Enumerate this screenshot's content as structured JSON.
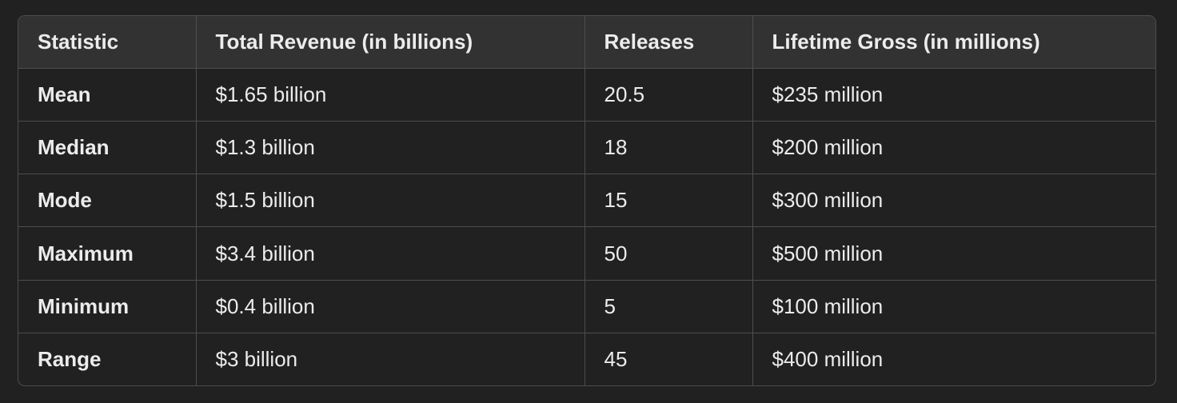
{
  "table": {
    "headers": [
      "Statistic",
      "Total Revenue (in billions)",
      "Releases",
      "Lifetime Gross (in millions)"
    ],
    "rows": [
      [
        "Mean",
        "$1.65 billion",
        "20.5",
        "$235 million"
      ],
      [
        "Median",
        "$1.3 billion",
        "18",
        "$200 million"
      ],
      [
        "Mode",
        "$1.5 billion",
        "15",
        "$300 million"
      ],
      [
        "Maximum",
        "$3.4 billion",
        "50",
        "$500 million"
      ],
      [
        "Minimum",
        "$0.4 billion",
        "5",
        "$100 million"
      ],
      [
        "Range",
        "$3 billion",
        "45",
        "$400 million"
      ]
    ]
  },
  "colors": {
    "background": "#212121",
    "header_background": "#323232",
    "border": "#4d4d4d",
    "text": "#ececec"
  }
}
